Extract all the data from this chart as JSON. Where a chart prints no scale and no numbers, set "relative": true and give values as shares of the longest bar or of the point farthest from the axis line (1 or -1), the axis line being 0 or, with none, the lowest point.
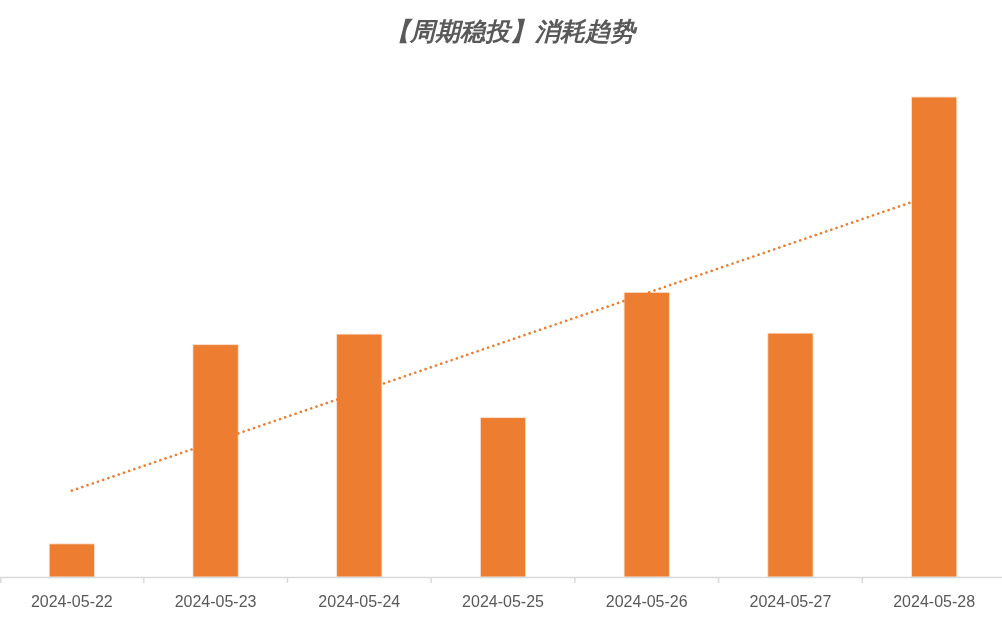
{
  "chart_data": {
    "type": "bar",
    "title": "【周期稳投】消耗趋势",
    "x": [
      "2024-05-22",
      "2024-05-23",
      "2024-05-24",
      "2024-05-25",
      "2024-05-26",
      "2024-05-27",
      "2024-05-28"
    ],
    "relative": true,
    "xlim": [
      "2024-05-21T12:00",
      "2024-05-28T12:00"
    ],
    "xticks": [
      "2024-05-22",
      "2024-05-23",
      "2024-05-24",
      "2024-05-25",
      "2024-05-26",
      "2024-05-27",
      "2024-05-28",
      {
        "value": "2024-05-21T12:00",
        "label": null
      },
      {
        "value": "2024-05-22T12:00",
        "label": null
      },
      {
        "value": "2024-05-23T12:00",
        "label": null
      },
      {
        "value": "2024-05-24T12:00",
        "label": null
      },
      {
        "value": "2024-05-25T12:00",
        "label": null
      },
      {
        "value": "2024-05-26T12:00",
        "label": null
      },
      {
        "value": "2024-05-27T12:00",
        "label": null
      }
    ],
    "series": [
      {
        "color": "#ed7d31",
        "values": [
          0.069,
          0.484,
          0.506,
          0.332,
          0.593,
          0.508,
          1
        ]
      },
      {
        "type": "line",
        "color": "#ed7d31",
        "line_style": "dotted",
        "x": [
          "2024-05-22",
          "2024-05-27T20:00"
        ],
        "values": [
          0.18,
          0.78
        ]
      }
    ]
  }
}
